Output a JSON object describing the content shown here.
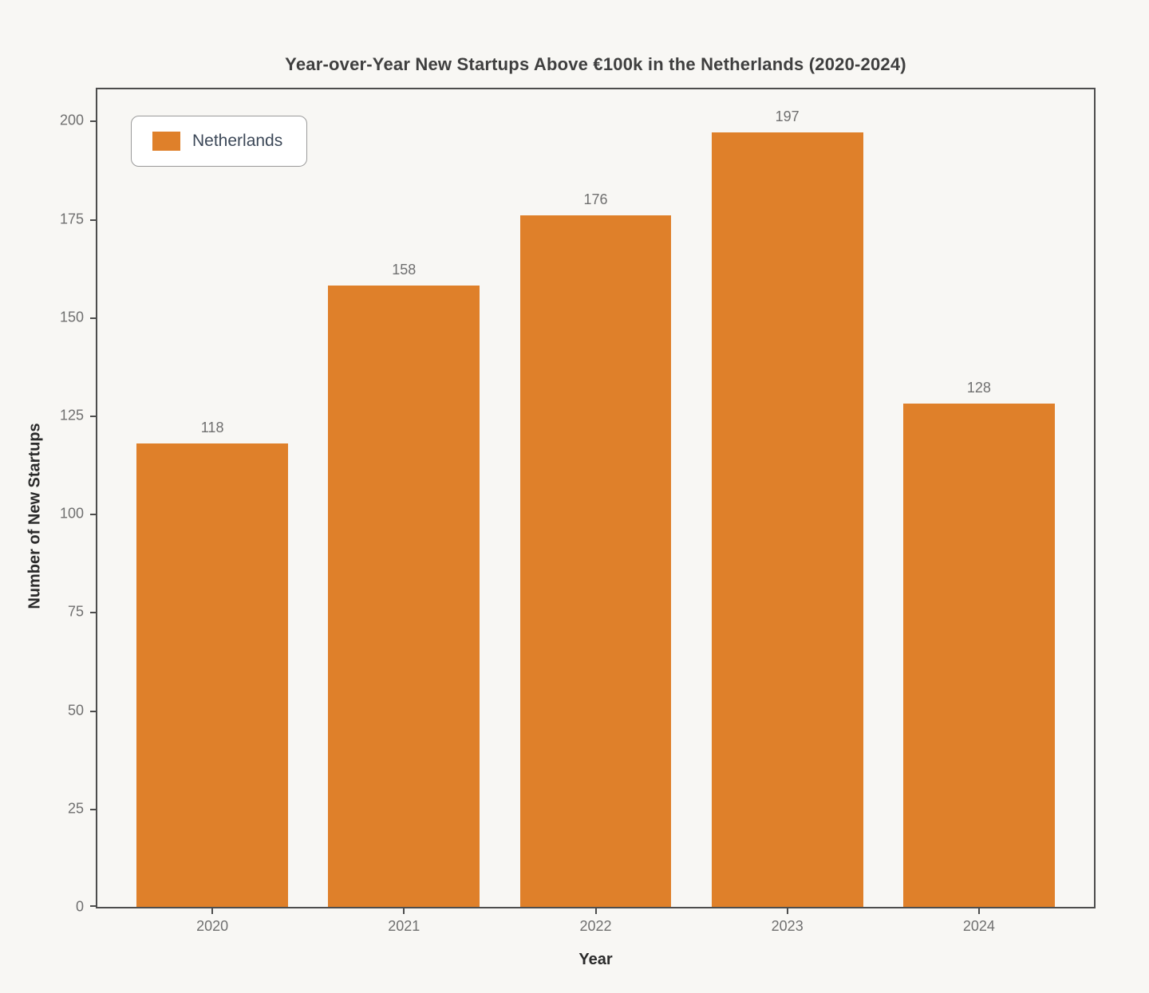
{
  "figure": {
    "title": "Year-over-Year New Startups Above €100k in the Netherlands (2020-2024)",
    "background": "#F8F7F4"
  },
  "axes": {
    "xlabel": "Year",
    "ylabel": "Number of New Startups"
  },
  "legend": {
    "label": "Netherlands"
  },
  "chart_data": {
    "type": "bar",
    "title": "Year-over-Year New Startups Above €100k in the Netherlands (2020-2024)",
    "categories": [
      "2020",
      "2021",
      "2022",
      "2023",
      "2024"
    ],
    "values": [
      118,
      158,
      176,
      197,
      128
    ],
    "bar_value_labels": [
      "118",
      "158",
      "176",
      "197",
      "128"
    ],
    "xlabel": "Year",
    "ylabel": "Number of New Startups",
    "ylim": [
      0,
      208
    ],
    "yticks": [
      0,
      25,
      50,
      75,
      100,
      125,
      150,
      175,
      200
    ],
    "grid": false,
    "legend": {
      "entries": [
        "Netherlands"
      ],
      "position": "upper-left"
    },
    "colors": {
      "bar": "#DF802A",
      "tick_label": "#6F6F6F",
      "value_label": "#6F6F6F",
      "title": "#3F3F3F",
      "axis_label": "#2B2B2B",
      "spine": "#4D4D4D",
      "background": "#F8F7F4",
      "legend_border": "#9A9A9A",
      "legend_text": "#3C4858"
    }
  }
}
